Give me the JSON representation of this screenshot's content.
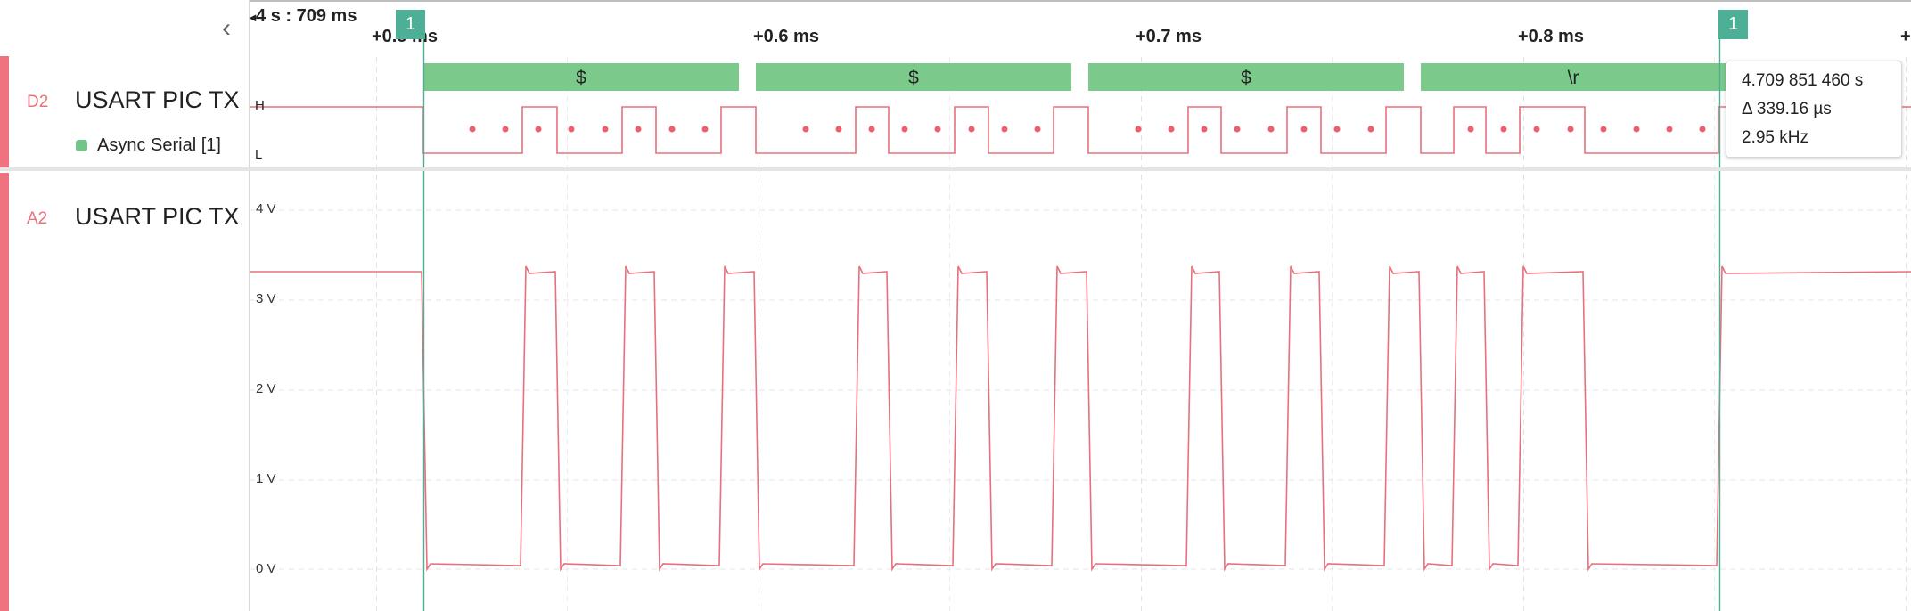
{
  "timeline": {
    "absolute_label": "4 s : 709 ms",
    "ticks": [
      "+0.5 ms",
      "+0.6 ms",
      "+0.7 ms",
      "+0.8 ms",
      "+"
    ],
    "markers": [
      "1",
      "1"
    ]
  },
  "channels": {
    "digital": {
      "id": "D2",
      "name": "USART PIC TX",
      "high_label": "H",
      "low_label": "L",
      "analyzer": "Async Serial [1]"
    },
    "analog": {
      "id": "A2",
      "name": "USART PIC TX",
      "volt_labels": [
        "4 V",
        "3 V",
        "2 V",
        "1 V",
        "0 V"
      ]
    }
  },
  "decoded_frames": [
    "$",
    "$",
    "$",
    "\\r"
  ],
  "measurement": {
    "time": "4.709 851 460 s",
    "delta": "Δ 339.16 µs",
    "frequency": "2.95 kHz"
  },
  "colors": {
    "signal": "#e8707c",
    "frame": "#7bca8c",
    "marker": "#4daf95"
  },
  "icons": {
    "collapse": "chevron-left-icon",
    "time_arrow": "triangle-left-icon",
    "analyzer_swatch": "square-icon"
  }
}
